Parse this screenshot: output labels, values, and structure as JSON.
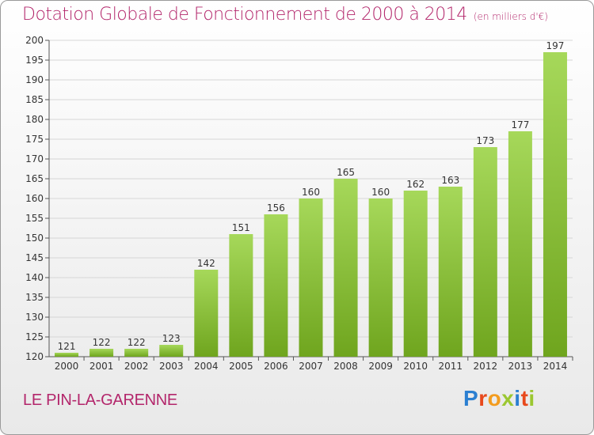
{
  "title": "Dotation Globale de Fonctionnement de 2000 à 2014",
  "subtitle": "(en milliers d'€)",
  "commune": "LE PIN-LA-GARENNE",
  "logo": {
    "text": "Proxiti",
    "letters": [
      "P",
      "r",
      "o",
      "x",
      "i",
      "t",
      "i"
    ]
  },
  "colors": {
    "title": "#b3266b",
    "bar_light": "#a6d85a",
    "bar_dark": "#6fa51e",
    "grid": "#d6d6d6"
  },
  "chart_data": {
    "type": "bar",
    "title": "Dotation Globale de Fonctionnement de 2000 à 2014",
    "subtitle": "(en milliers d'€)",
    "categories": [
      "2000",
      "2001",
      "2002",
      "2003",
      "2004",
      "2005",
      "2006",
      "2007",
      "2008",
      "2009",
      "2010",
      "2011",
      "2012",
      "2013",
      "2014"
    ],
    "values": [
      121,
      122,
      122,
      123,
      142,
      151,
      156,
      160,
      165,
      160,
      162,
      163,
      173,
      177,
      197
    ],
    "xlabel": "",
    "ylabel": "",
    "ylim": [
      120,
      200
    ],
    "yticks": [
      120,
      125,
      130,
      135,
      140,
      145,
      150,
      155,
      160,
      165,
      170,
      175,
      180,
      185,
      190,
      195,
      200
    ],
    "grid": true,
    "data_labels": true
  }
}
